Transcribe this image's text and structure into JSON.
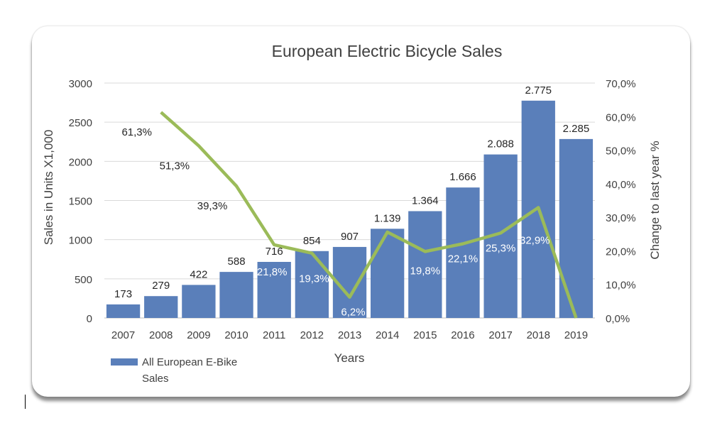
{
  "chart_data": {
    "type": "bar+line",
    "title": "European Electric Bicycle Sales",
    "xlabel": "Years",
    "ylabel": "Sales in Units X1,000",
    "y2label": "Change to last year %",
    "categories": [
      "2007",
      "2008",
      "2009",
      "2010",
      "2011",
      "2012",
      "2013",
      "2014",
      "2015",
      "2016",
      "2017",
      "2018",
      "2019"
    ],
    "ylim": [
      0,
      3000
    ],
    "yticks": [
      "0",
      "500",
      "1000",
      "1500",
      "2000",
      "2500",
      "3000"
    ],
    "y2lim": [
      0,
      70
    ],
    "y2ticks": [
      "0,0%",
      "10,0%",
      "20,0%",
      "30,0%",
      "40,0%",
      "50,0%",
      "60,0%",
      "70,0%"
    ],
    "grid": true,
    "series": [
      {
        "name": "All European E-Bike Sales",
        "type": "bar",
        "color": "#5a7fba",
        "values": [
          173,
          279,
          422,
          588,
          716,
          854,
          907,
          1139,
          1364,
          1666,
          2088,
          2775,
          2285
        ],
        "labels": [
          "173",
          "279",
          "422",
          "588",
          "716",
          "854",
          "907",
          "1.139",
          "1.364",
          "1.666",
          "2.088",
          "2.775",
          "2.285"
        ]
      },
      {
        "name": "Change to last year",
        "type": "line",
        "axis": "right",
        "color": "#9bbb59",
        "values": [
          null,
          61.3,
          51.3,
          39.3,
          21.8,
          19.3,
          6.2,
          25.6,
          19.8,
          22.1,
          25.3,
          32.9,
          0
        ],
        "labels": [
          null,
          "61,3%",
          "51,3%",
          "39,3%",
          "21,8%",
          "19,3%",
          "6,2%",
          null,
          "19,8%",
          "22,1%",
          "25,3%",
          "32,9%",
          null
        ]
      }
    ],
    "legend": {
      "position": "bottom-left",
      "entries": [
        "All European E-Bike",
        "Sales"
      ]
    }
  }
}
